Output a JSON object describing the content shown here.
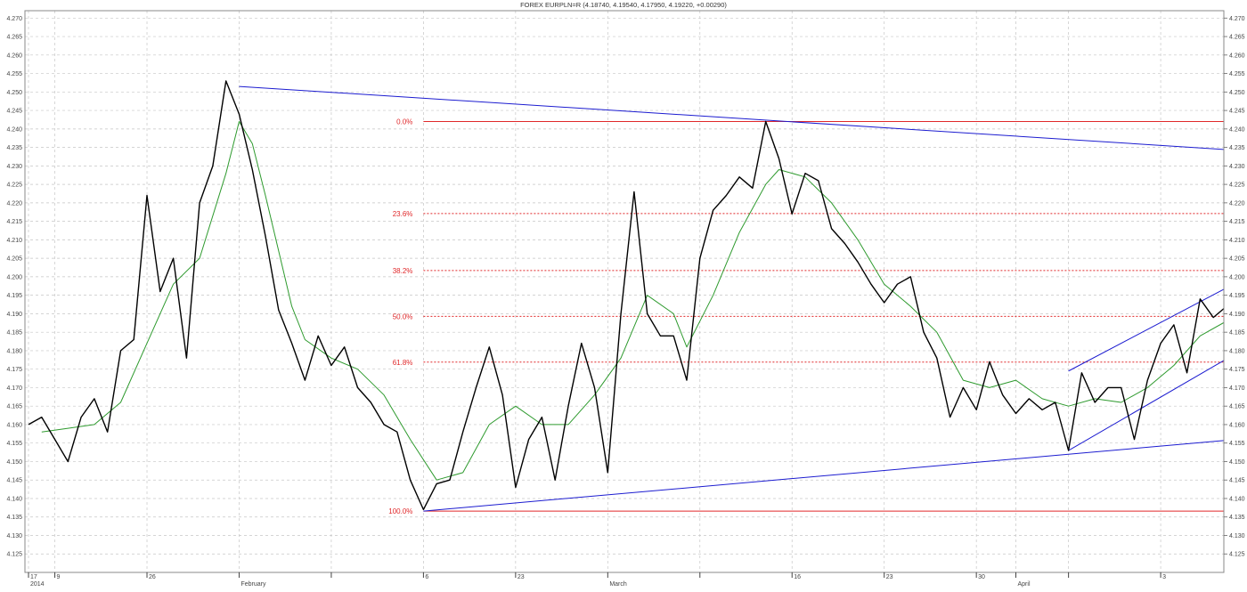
{
  "header": {
    "title": "FOREX EURPLN=R (4.18740, 4.19540, 4.17950, 4.19220, +0.00290)"
  },
  "chart_data": {
    "type": "line",
    "title": "FOREX EURPLN=R (4.18740, 4.19540, 4.17950, 4.19220, +0.00290)",
    "xlabel": "",
    "ylabel": "",
    "x_range": [
      "2014-01-17",
      "2014-04-17"
    ],
    "ylim": [
      4.12,
      4.272
    ],
    "y_ticks": [
      4.125,
      4.13,
      4.135,
      4.14,
      4.145,
      4.15,
      4.155,
      4.16,
      4.165,
      4.17,
      4.175,
      4.18,
      4.185,
      4.19,
      4.195,
      4.2,
      4.205,
      4.21,
      4.215,
      4.22,
      4.225,
      4.23,
      4.235,
      4.24,
      4.245,
      4.25,
      4.255,
      4.26,
      4.265,
      4.27
    ],
    "y_tick_labels": [
      "4.125",
      "4.130",
      "4.135",
      "4.140",
      "4.145",
      "4.150",
      "4.155",
      "4.160",
      "4.165",
      "4.170",
      "4.175",
      "4.180",
      "4.185",
      "4.190",
      "4.195",
      "4.200",
      "4.205",
      "4.210",
      "4.215",
      "4.220",
      "4.225",
      "4.230",
      "4.235",
      "4.240",
      "4.245",
      "4.250",
      "4.255",
      "4.260",
      "4.265",
      "4.270"
    ],
    "grid": true,
    "x_labels": [
      {
        "x": "2014-01-17",
        "text": "17"
      },
      {
        "x": "2014-01-17",
        "text": "2014"
      },
      {
        "x": "2014-01-19",
        "text": "9"
      },
      {
        "x": "2014-01-26",
        "text": "26"
      },
      {
        "x": "2014-02-02",
        "text": "February"
      },
      {
        "x": "2014-02-16",
        "text": "6"
      },
      {
        "x": "2014-02-23",
        "text": "23"
      },
      {
        "x": "2014-03-02",
        "text": "March"
      },
      {
        "x": "2014-03-16",
        "text": "16"
      },
      {
        "x": "2014-03-23",
        "text": "23"
      },
      {
        "x": "2014-03-30",
        "text": "30"
      },
      {
        "x": "2014-04-02",
        "text": "April"
      },
      {
        "x": "2014-04-13",
        "text": "3"
      }
    ],
    "x_major_ticks": [
      "2014-01-17",
      "2014-01-19",
      "2014-01-26",
      "2014-02-02",
      "2014-02-09",
      "2014-02-16",
      "2014-02-23",
      "2014-03-02",
      "2014-03-09",
      "2014-03-16",
      "2014-03-23",
      "2014-03-30",
      "2014-04-02",
      "2014-04-06",
      "2014-04-13"
    ],
    "series": [
      {
        "role": "price",
        "color": "#000000",
        "points": [
          [
            "2014-01-17",
            4.16
          ],
          [
            "2014-01-18",
            4.162
          ],
          [
            "2014-01-19",
            4.156
          ],
          [
            "2014-01-20",
            4.15
          ],
          [
            "2014-01-21",
            4.162
          ],
          [
            "2014-01-22",
            4.167
          ],
          [
            "2014-01-23",
            4.158
          ],
          [
            "2014-01-24",
            4.18
          ],
          [
            "2014-01-25",
            4.183
          ],
          [
            "2014-01-26",
            4.222
          ],
          [
            "2014-01-27",
            4.196
          ],
          [
            "2014-01-28",
            4.205
          ],
          [
            "2014-01-29",
            4.178
          ],
          [
            "2014-01-30",
            4.22
          ],
          [
            "2014-01-31",
            4.23
          ],
          [
            "2014-02-01",
            4.253
          ],
          [
            "2014-02-02",
            4.244
          ],
          [
            "2014-02-03",
            4.229
          ],
          [
            "2014-02-04",
            4.211
          ],
          [
            "2014-02-05",
            4.191
          ],
          [
            "2014-02-06",
            4.182
          ],
          [
            "2014-02-07",
            4.172
          ],
          [
            "2014-02-08",
            4.184
          ],
          [
            "2014-02-09",
            4.176
          ],
          [
            "2014-02-10",
            4.181
          ],
          [
            "2014-02-11",
            4.17
          ],
          [
            "2014-02-12",
            4.166
          ],
          [
            "2014-02-13",
            4.16
          ],
          [
            "2014-02-14",
            4.158
          ],
          [
            "2014-02-15",
            4.145
          ],
          [
            "2014-02-16",
            4.137
          ],
          [
            "2014-02-17",
            4.144
          ],
          [
            "2014-02-18",
            4.145
          ],
          [
            "2014-02-19",
            4.158
          ],
          [
            "2014-02-20",
            4.17
          ],
          [
            "2014-02-21",
            4.181
          ],
          [
            "2014-02-22",
            4.168
          ],
          [
            "2014-02-23",
            4.143
          ],
          [
            "2014-02-24",
            4.156
          ],
          [
            "2014-02-25",
            4.162
          ],
          [
            "2014-02-26",
            4.145
          ],
          [
            "2014-02-27",
            4.165
          ],
          [
            "2014-02-28",
            4.182
          ],
          [
            "2014-03-01",
            4.17
          ],
          [
            "2014-03-02",
            4.147
          ],
          [
            "2014-03-03",
            4.19
          ],
          [
            "2014-03-04",
            4.223
          ],
          [
            "2014-03-05",
            4.19
          ],
          [
            "2014-03-06",
            4.184
          ],
          [
            "2014-03-07",
            4.184
          ],
          [
            "2014-03-08",
            4.172
          ],
          [
            "2014-03-09",
            4.205
          ],
          [
            "2014-03-10",
            4.218
          ],
          [
            "2014-03-11",
            4.222
          ],
          [
            "2014-03-12",
            4.227
          ],
          [
            "2014-03-13",
            4.224
          ],
          [
            "2014-03-14",
            4.242
          ],
          [
            "2014-03-15",
            4.232
          ],
          [
            "2014-03-16",
            4.217
          ],
          [
            "2014-03-17",
            4.228
          ],
          [
            "2014-03-18",
            4.226
          ],
          [
            "2014-03-19",
            4.213
          ],
          [
            "2014-03-20",
            4.209
          ],
          [
            "2014-03-21",
            4.204
          ],
          [
            "2014-03-22",
            4.198
          ],
          [
            "2014-03-23",
            4.193
          ],
          [
            "2014-03-24",
            4.198
          ],
          [
            "2014-03-25",
            4.2
          ],
          [
            "2014-03-26",
            4.185
          ],
          [
            "2014-03-27",
            4.178
          ],
          [
            "2014-03-28",
            4.162
          ],
          [
            "2014-03-29",
            4.17
          ],
          [
            "2014-03-30",
            4.164
          ],
          [
            "2014-03-31",
            4.177
          ],
          [
            "2014-04-01",
            4.168
          ],
          [
            "2014-04-02",
            4.163
          ],
          [
            "2014-04-03",
            4.167
          ],
          [
            "2014-04-04",
            4.164
          ],
          [
            "2014-04-05",
            4.166
          ],
          [
            "2014-04-06",
            4.153
          ],
          [
            "2014-04-07",
            4.174
          ],
          [
            "2014-04-08",
            4.166
          ],
          [
            "2014-04-09",
            4.17
          ],
          [
            "2014-04-10",
            4.17
          ],
          [
            "2014-04-11",
            4.156
          ],
          [
            "2014-04-12",
            4.172
          ],
          [
            "2014-04-13",
            4.182
          ],
          [
            "2014-04-14",
            4.187
          ],
          [
            "2014-04-15",
            4.174
          ],
          [
            "2014-04-16",
            4.194
          ],
          [
            "2014-04-17",
            4.189
          ],
          [
            "2014-04-18",
            4.192
          ]
        ]
      },
      {
        "role": "moving-average",
        "color": "#2e9a2e",
        "points": [
          [
            "2014-01-18",
            4.158
          ],
          [
            "2014-01-20",
            4.159
          ],
          [
            "2014-01-22",
            4.16
          ],
          [
            "2014-01-24",
            4.166
          ],
          [
            "2014-01-26",
            4.182
          ],
          [
            "2014-01-28",
            4.198
          ],
          [
            "2014-01-30",
            4.205
          ],
          [
            "2014-02-01",
            4.228
          ],
          [
            "2014-02-02",
            4.242
          ],
          [
            "2014-02-03",
            4.236
          ],
          [
            "2014-02-04",
            4.222
          ],
          [
            "2014-02-05",
            4.207
          ],
          [
            "2014-02-06",
            4.192
          ],
          [
            "2014-02-07",
            4.183
          ],
          [
            "2014-02-09",
            4.178
          ],
          [
            "2014-02-11",
            4.175
          ],
          [
            "2014-02-13",
            4.168
          ],
          [
            "2014-02-15",
            4.156
          ],
          [
            "2014-02-17",
            4.145
          ],
          [
            "2014-02-19",
            4.147
          ],
          [
            "2014-02-21",
            4.16
          ],
          [
            "2014-02-23",
            4.165
          ],
          [
            "2014-02-25",
            4.16
          ],
          [
            "2014-02-27",
            4.16
          ],
          [
            "2014-03-01",
            4.168
          ],
          [
            "2014-03-03",
            4.178
          ],
          [
            "2014-03-05",
            4.195
          ],
          [
            "2014-03-07",
            4.19
          ],
          [
            "2014-03-08",
            4.181
          ],
          [
            "2014-03-10",
            4.195
          ],
          [
            "2014-03-12",
            4.212
          ],
          [
            "2014-03-14",
            4.225
          ],
          [
            "2014-03-15",
            4.229
          ],
          [
            "2014-03-17",
            4.227
          ],
          [
            "2014-03-19",
            4.22
          ],
          [
            "2014-03-21",
            4.21
          ],
          [
            "2014-03-23",
            4.198
          ],
          [
            "2014-03-25",
            4.192
          ],
          [
            "2014-03-27",
            4.185
          ],
          [
            "2014-03-29",
            4.172
          ],
          [
            "2014-03-31",
            4.17
          ],
          [
            "2014-04-02",
            4.172
          ],
          [
            "2014-04-04",
            4.167
          ],
          [
            "2014-04-06",
            4.165
          ],
          [
            "2014-04-08",
            4.167
          ],
          [
            "2014-04-10",
            4.166
          ],
          [
            "2014-04-12",
            4.17
          ],
          [
            "2014-04-14",
            4.176
          ],
          [
            "2014-04-16",
            4.184
          ],
          [
            "2014-04-18",
            4.188
          ]
        ]
      }
    ],
    "fibonacci_levels": [
      {
        "label": "0.0%",
        "value": 4.242,
        "style": "solid"
      },
      {
        "label": "23.6%",
        "value": 4.2171,
        "style": "dashed"
      },
      {
        "label": "38.2%",
        "value": 4.2017,
        "style": "dashed"
      },
      {
        "label": "50.0%",
        "value": 4.1893,
        "style": "dashed"
      },
      {
        "label": "61.8%",
        "value": 4.1769,
        "style": "dashed"
      },
      {
        "label": "100.0%",
        "value": 4.1366,
        "style": "solid"
      }
    ],
    "fibonacci_start": "2014-02-16",
    "trendlines": [
      {
        "from": [
          "2014-02-02",
          4.2515
        ],
        "to": [
          "2014-04-22",
          4.2335
        ]
      },
      {
        "from": [
          "2014-02-16",
          4.1366
        ],
        "to": [
          "2014-04-22",
          4.157
        ]
      },
      {
        "from": [
          "2014-04-06",
          4.153
        ],
        "to": [
          "2014-04-22",
          4.186
        ]
      },
      {
        "from": [
          "2014-04-06",
          4.1745
        ],
        "to": [
          "2014-04-22",
          4.2045
        ]
      }
    ],
    "colors": {
      "price": "#000000",
      "moving_average": "#2e9a2e",
      "fibonacci": "#e0282a",
      "trendline": "#1c1cd0",
      "grid": "#c6c6c6",
      "axis_text": "#444444"
    }
  }
}
